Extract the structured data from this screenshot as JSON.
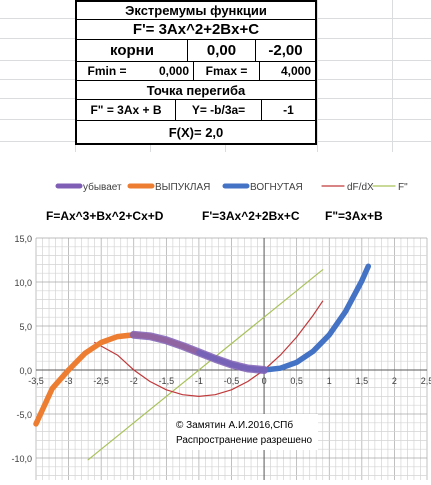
{
  "table": {
    "title": "Экстремумы функции",
    "formula": "F'= 3Ax^2+2Bx+C",
    "roots_label": "корни",
    "root1": "0,00",
    "root2": "-2,00",
    "fmin_label": "Fmin =",
    "fmin_value": "0,000",
    "fmax_label": "Fmax =",
    "fmax_value": "4,000",
    "inflection_title": "Точка перегиба",
    "second_derivative": "F\" = 3Ax + B",
    "inflection_formula": "Y= -b/3a=",
    "inflection_value": "-1",
    "fx_value": "F(X)=  2,0"
  },
  "chart_data": {
    "type": "line",
    "legend": [
      {
        "name": "убывает",
        "color": "#7f5fb5"
      },
      {
        "name": "ВЫПУКЛАЯ",
        "color": "#ed7d31"
      },
      {
        "name": "ВОГНУТАЯ",
        "color": "#4472c4"
      },
      {
        "name": "dF/dX",
        "color": "#c0393b"
      },
      {
        "name": "F\"",
        "color": "#a9c25a"
      }
    ],
    "headers": [
      "F=Ax^3+Bx^2+Cx+D",
      "F'=3Ax^2+2Bx+C",
      "F\"=3Ax+B"
    ],
    "xlim": [
      -3.5,
      2.5
    ],
    "ylim": [
      -12.5,
      15
    ],
    "x_ticks": [
      "-3,5",
      "-3",
      "-2,5",
      "-2",
      "-1,5",
      "-1",
      "-0,5",
      "0",
      "0,5",
      "1",
      "1,5",
      "2",
      "2,5"
    ],
    "y_ticks": [
      "15,0",
      "10,0",
      "5,0",
      "0,0",
      "-5,0",
      "-10,0"
    ],
    "y_tick_values": [
      15,
      10,
      5,
      0,
      -5,
      -10
    ],
    "x_tick_values": [
      -3.5,
      -3,
      -2.5,
      -2,
      -1.5,
      -1,
      -0.5,
      0,
      0.5,
      1,
      1.5,
      2,
      2.5
    ],
    "series": [
      {
        "name": "ВЫПУКЛАЯ",
        "x": [
          -3.5,
          -3.25,
          -3.0,
          -2.75,
          -2.5,
          -2.25,
          -2.0,
          -1.75,
          -1.5,
          -1.25,
          -1.0
        ],
        "y": [
          -6.13,
          -2.09,
          0.0,
          1.89,
          3.13,
          3.8,
          4.0,
          3.83,
          3.38,
          2.73,
          2.0
        ]
      },
      {
        "name": "ВОГНУТАЯ",
        "x": [
          -1.0,
          -0.75,
          -0.5,
          -0.25,
          0.0,
          0.25,
          0.5,
          0.75,
          1.0,
          1.25,
          1.5,
          1.6
        ],
        "y": [
          2.0,
          1.27,
          0.63,
          0.17,
          0.0,
          0.2,
          0.88,
          2.11,
          4.0,
          6.64,
          10.13,
          11.78
        ]
      },
      {
        "name": "убывает",
        "x": [
          -2.0,
          -1.75,
          -1.5,
          -1.25,
          -1.0,
          -0.75,
          -0.5,
          -0.25,
          0.0
        ],
        "y": [
          4.0,
          3.83,
          3.38,
          2.73,
          2.0,
          1.27,
          0.63,
          0.17,
          0.0
        ]
      },
      {
        "name": "dF/dX",
        "x": [
          -2.6,
          -2.25,
          -2.0,
          -1.75,
          -1.5,
          -1.25,
          -1.0,
          -0.75,
          -0.5,
          -0.25,
          0.0,
          0.25,
          0.5,
          0.75,
          0.9
        ],
        "y": [
          3.12,
          1.69,
          0.0,
          -1.31,
          -2.25,
          -2.81,
          -3.0,
          -2.81,
          -2.25,
          -1.31,
          0.0,
          1.69,
          3.75,
          6.19,
          7.83
        ]
      },
      {
        "name": "F\"",
        "x": [
          -2.7,
          0.9
        ],
        "y": [
          -10.2,
          11.4
        ]
      }
    ],
    "annotation": [
      "© Замятин А.И.2016,СПб",
      "Распространение разрешено"
    ]
  }
}
